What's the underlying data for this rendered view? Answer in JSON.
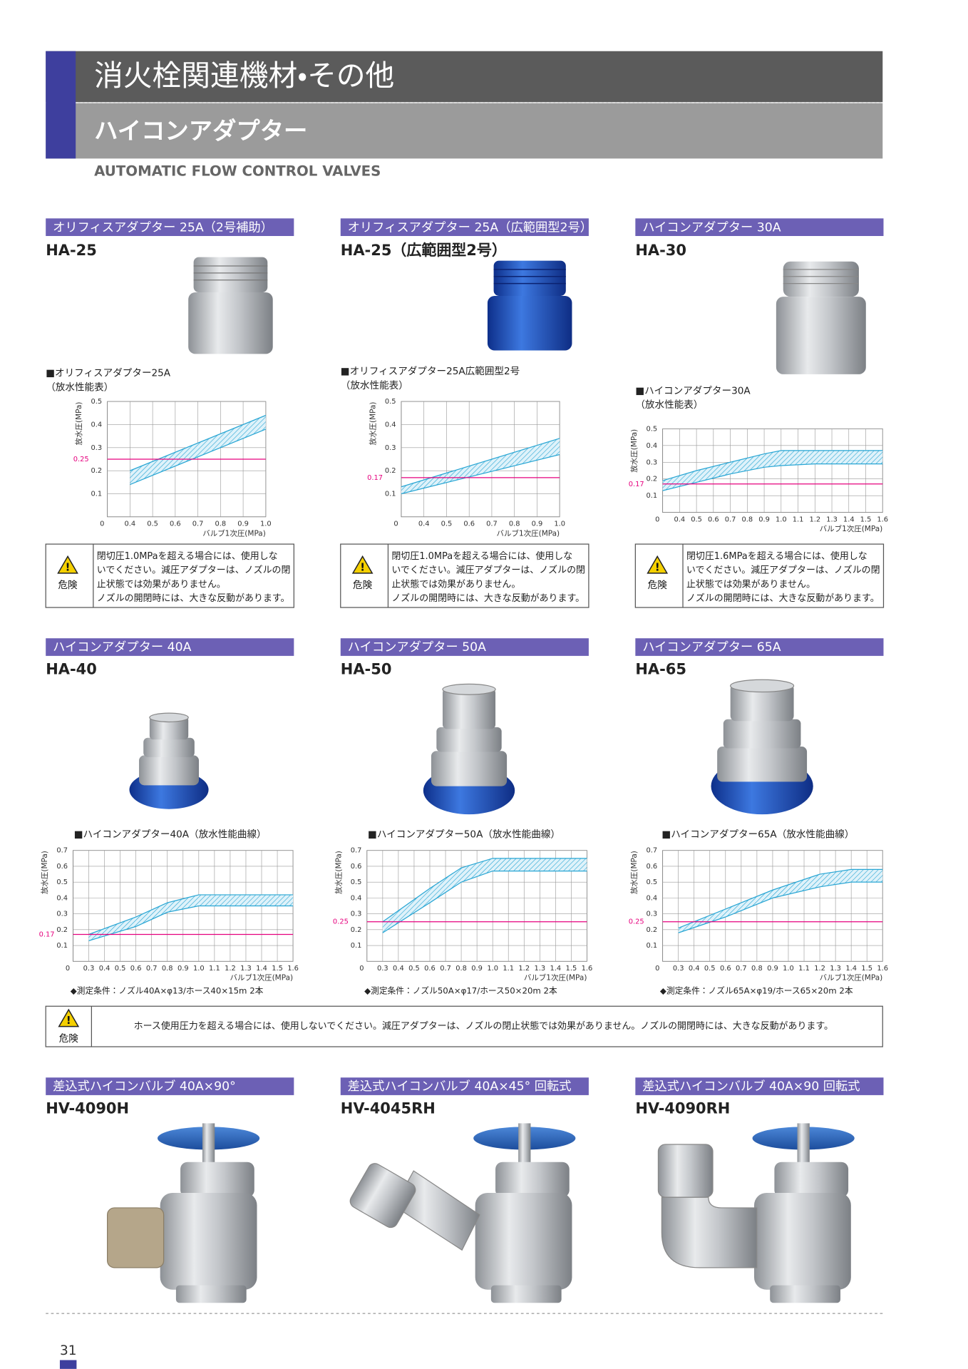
{
  "header": {
    "title": "消火栓関連機材・その他",
    "subtitle": "ハイコンアダプター",
    "english": "AUTOMATIC FLOW CONTROL VALVES"
  },
  "products": [
    {
      "label": "オリフィスアダプター 25A（2号補助）",
      "model": "HA-25"
    },
    {
      "label": "オリフィスアダプター 25A（広範囲型2号）",
      "model": "HA-25（広範囲型2号）"
    },
    {
      "label": "ハイコンアダプター 30A",
      "model": "HA-30"
    },
    {
      "label": "ハイコンアダプター 40A",
      "model": "HA-40"
    },
    {
      "label": "ハイコンアダプター 50A",
      "model": "HA-50"
    },
    {
      "label": "ハイコンアダプター 65A",
      "model": "HA-65"
    },
    {
      "label": "差込式ハイコンバルブ 40A×90°",
      "model": "HV-4090H"
    },
    {
      "label": "差込式ハイコンバルブ 40A×45° 回転式",
      "model": "HV-4045RH"
    },
    {
      "label": "差込式ハイコンバルブ 40A×90 回転式",
      "model": "HV-4090RH"
    }
  ],
  "warnings": [
    {
      "icon_label": "危険",
      "lines": [
        "閉切圧1.0MPaを超える場合には、使用しな",
        "いでください。減圧アダプターは、ノズルの閉",
        "止状態では効果がありません。",
        "ノズルの開閉時には、大きな反動があります。"
      ]
    },
    {
      "icon_label": "危険",
      "lines": [
        "閉切圧1.0MPaを超える場合には、使用しな",
        "いでください。減圧アダプターは、ノズルの閉",
        "止状態では効果がありません。",
        "ノズルの開閉時には、大きな反動があります。"
      ]
    },
    {
      "icon_label": "危険",
      "lines": [
        "閉切圧1.6MPaを超える場合には、使用しな",
        "いでください。減圧アダプターは、ノズルの閉",
        "止状態では効果がありません。",
        "ノズルの開閉時には、大きな反動があります。"
      ]
    }
  ],
  "common_warning": {
    "icon_label": "危険",
    "text": "ホース使用圧力を超える場合には、使用しないでください。減圧アダプターは、ノズルの閉止状態では効果がありません。ノズルの開閉時には、大きな反動があります。"
  },
  "chart_data": [
    {
      "type": "band",
      "title": "■オリフィスアダプター25A",
      "subtitle": "（放水性能表）",
      "xlabel": "バルブ1次圧(MPa)",
      "ylabel": "放水圧(MPa)",
      "origin_label": "0",
      "xlim": [
        0.3,
        1.0
      ],
      "xticks": [
        0.4,
        0.5,
        0.6,
        0.7,
        0.8,
        0.9,
        {
          "value": 1,
          "label": "1.0"
        }
      ],
      "ylim": [
        0,
        0.5
      ],
      "yticks": [
        0.1,
        0.2,
        0.3,
        0.4,
        0.5
      ],
      "grid": true,
      "x": [
        0.4,
        1.0
      ],
      "series": [
        {
          "color": "#29a6d4",
          "values": [
            0.2,
            0.44
          ]
        },
        {
          "color": "#29a6d4",
          "values": [
            0.14,
            0.38
          ]
        }
      ],
      "reference_line": {
        "value": 0.25,
        "color": "#e6007e"
      }
    },
    {
      "type": "band",
      "title": "■オリフィスアダプター25A広範囲型2号",
      "subtitle": "（放水性能表）",
      "xlabel": "バルブ1次圧(MPa)",
      "ylabel": "放水圧(MPa)",
      "origin_label": "0",
      "xlim": [
        0.3,
        1.0
      ],
      "xticks": [
        0.4,
        0.5,
        0.6,
        0.7,
        0.8,
        0.9,
        {
          "value": 1,
          "label": "1.0"
        }
      ],
      "ylim": [
        0,
        0.5
      ],
      "yticks": [
        0.1,
        0.2,
        0.3,
        0.4,
        0.5
      ],
      "grid": true,
      "x": [
        0.3,
        1.0
      ],
      "series": [
        {
          "color": "#29a6d4",
          "values": [
            0.13,
            0.34
          ]
        },
        {
          "color": "#29a6d4",
          "values": [
            0.1,
            0.27
          ]
        }
      ],
      "reference_line": {
        "value": 0.17,
        "color": "#e6007e"
      }
    },
    {
      "type": "band",
      "title": "■ハイコンアダプター30A",
      "subtitle": "（放水性能表）",
      "xlabel": "バルブ1次圧(MPa)",
      "ylabel": "放水圧(MPa)",
      "origin_label": "0",
      "xlim": [
        0.3,
        1.6
      ],
      "xticks": [
        0.4,
        0.5,
        0.6,
        0.7,
        0.8,
        0.9,
        {
          "value": 1,
          "label": "1.0"
        },
        1.1,
        1.2,
        1.3,
        1.4,
        1.5,
        1.6
      ],
      "ylim": [
        0,
        0.5
      ],
      "yticks": [
        0.1,
        0.2,
        0.3,
        0.4,
        0.5
      ],
      "grid": true,
      "x": [
        0.3,
        0.5,
        0.7,
        0.9,
        1.0,
        1.2,
        1.6
      ],
      "series": [
        {
          "color": "#29a6d4",
          "values": [
            0.19,
            0.25,
            0.3,
            0.35,
            0.37,
            0.37,
            0.37
          ]
        },
        {
          "color": "#29a6d4",
          "values": [
            0.13,
            0.18,
            0.23,
            0.27,
            0.28,
            0.29,
            0.29
          ]
        }
      ],
      "reference_line": {
        "value": 0.17,
        "color": "#e6007e"
      }
    },
    {
      "type": "band",
      "title": "■ハイコンアダプター40A（放水性能曲線）",
      "note": "◆測定条件：ノズル40A×φ13/ホース40×15m 2本",
      "xlabel": "バルブ1次圧(MPa)",
      "ylabel": "放水圧(MPa)",
      "origin_label": "0",
      "xlim": [
        0.2,
        1.6
      ],
      "xticks": [
        0.3,
        0.4,
        0.5,
        0.6,
        0.7,
        0.8,
        0.9,
        {
          "value": 1,
          "label": "1.0"
        },
        1.1,
        1.2,
        1.3,
        1.4,
        1.5,
        1.6
      ],
      "ylim": [
        0,
        0.7
      ],
      "yticks": [
        0.1,
        0.2,
        0.3,
        0.4,
        0.5,
        0.6,
        0.7
      ],
      "grid": true,
      "x": [
        0.3,
        0.6,
        0.8,
        1.0,
        1.6
      ],
      "series": [
        {
          "color": "#29a6d4",
          "values": [
            0.17,
            0.28,
            0.37,
            0.42,
            0.42
          ]
        },
        {
          "color": "#29a6d4",
          "values": [
            0.13,
            0.22,
            0.31,
            0.35,
            0.35
          ]
        }
      ],
      "reference_line": {
        "value": 0.17,
        "color": "#e6007e"
      }
    },
    {
      "type": "band",
      "title": "■ハイコンアダプター50A（放水性能曲線）",
      "note": "◆測定条件：ノズル50A×φ17/ホース50×20m 2本",
      "xlabel": "バルブ1次圧(MPa)",
      "ylabel": "放水圧(MPa)",
      "origin_label": "0",
      "xlim": [
        0.2,
        1.6
      ],
      "xticks": [
        0.3,
        0.4,
        0.5,
        0.6,
        0.7,
        0.8,
        0.9,
        {
          "value": 1,
          "label": "1.0"
        },
        1.1,
        1.2,
        1.3,
        1.4,
        1.5,
        1.6
      ],
      "ylim": [
        0,
        0.7
      ],
      "yticks": [
        0.1,
        0.2,
        0.3,
        0.4,
        0.5,
        0.6,
        0.7
      ],
      "grid": true,
      "x": [
        0.3,
        0.6,
        0.8,
        1.0,
        1.6
      ],
      "series": [
        {
          "color": "#29a6d4",
          "values": [
            0.25,
            0.46,
            0.59,
            0.65,
            0.65
          ]
        },
        {
          "color": "#29a6d4",
          "values": [
            0.18,
            0.37,
            0.5,
            0.57,
            0.57
          ]
        }
      ],
      "reference_line": {
        "value": 0.25,
        "color": "#e6007e"
      }
    },
    {
      "type": "band",
      "title": "■ハイコンアダプター65A（放水性能曲線）",
      "note": "◆測定条件：ノズル65A×φ19/ホース65×20m 2本",
      "xlabel": "バルブ1次圧(MPa)",
      "ylabel": "放水圧(MPa)",
      "origin_label": "0",
      "xlim": [
        0.2,
        1.6
      ],
      "xticks": [
        0.3,
        0.4,
        0.5,
        0.6,
        0.7,
        0.8,
        0.9,
        {
          "value": 1,
          "label": "1.0"
        },
        1.1,
        1.2,
        1.3,
        1.4,
        1.5,
        1.6
      ],
      "ylim": [
        0,
        0.7
      ],
      "yticks": [
        0.1,
        0.2,
        0.3,
        0.4,
        0.5,
        0.6,
        0.7
      ],
      "grid": true,
      "x": [
        0.3,
        0.6,
        0.9,
        1.2,
        1.4,
        1.6
      ],
      "series": [
        {
          "color": "#29a6d4",
          "values": [
            0.21,
            0.33,
            0.45,
            0.55,
            0.58,
            0.58
          ]
        },
        {
          "color": "#29a6d4",
          "values": [
            0.18,
            0.28,
            0.4,
            0.47,
            0.5,
            0.5
          ]
        }
      ],
      "reference_line": {
        "value": 0.25,
        "color": "#e6007e"
      }
    }
  ],
  "page_number": 31
}
